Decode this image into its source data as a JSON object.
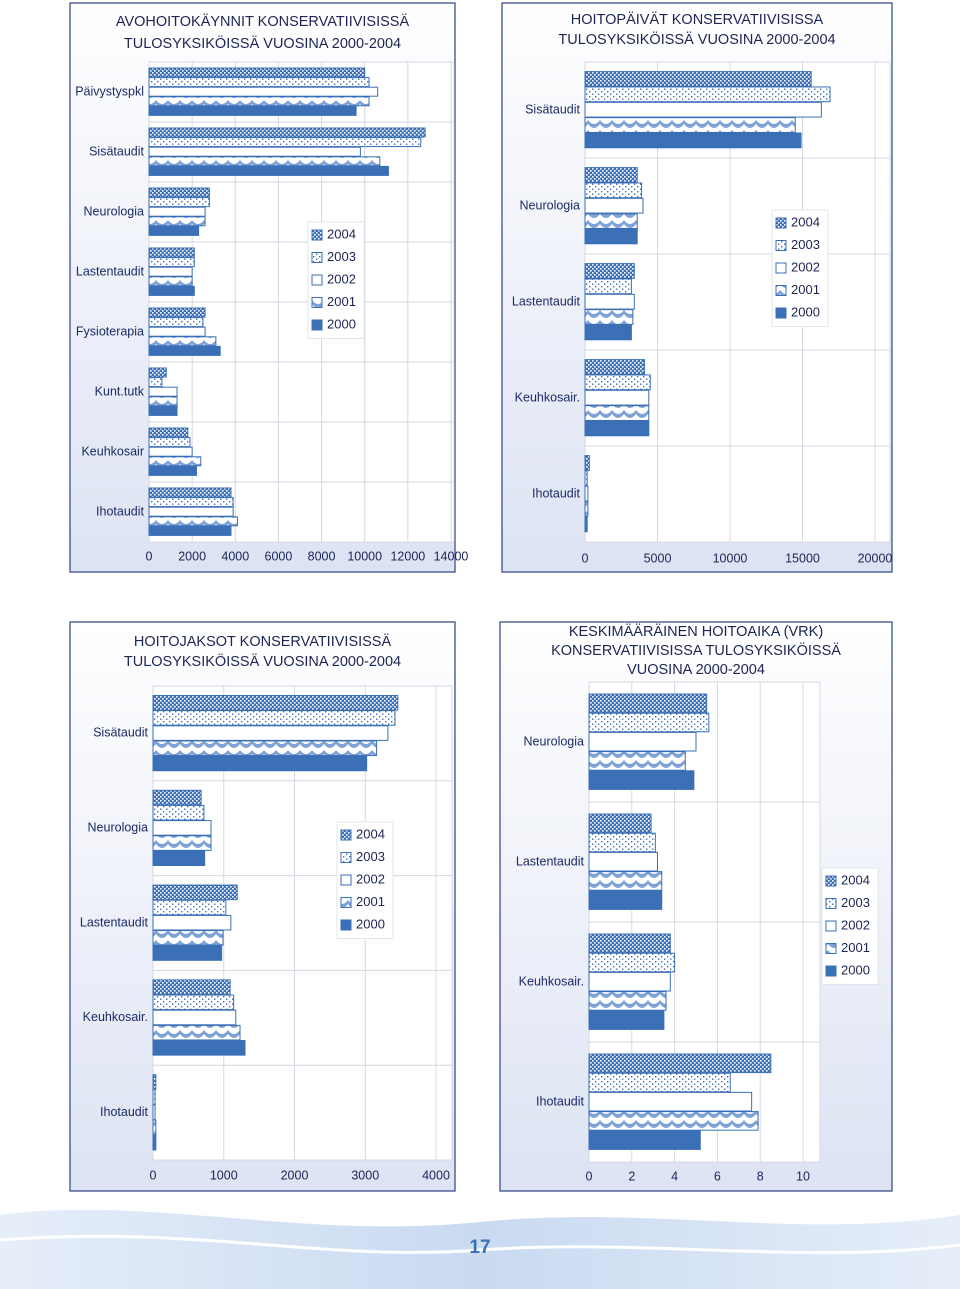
{
  "chart_data": [
    {
      "type": "hbar",
      "title": [
        "AVOHOITOKÄYNNIT KONSERVATIIVISISSÄ",
        "TULOSYKSIKÖISSÄ VUOSINA 2000-2004"
      ],
      "categories": [
        "Päivystyspkl",
        "Sisätaudit",
        "Neurologia",
        "Lastentaudit",
        "Fysioterapia",
        "Kunt.tutk",
        "Keuhkosair",
        "Ihotaudit"
      ],
      "series": [
        {
          "name": "2004",
          "color": "#3b6fb6",
          "pattern": "checker",
          "values": [
            10000,
            12800,
            2800,
            2100,
            2600,
            800,
            1800,
            3800
          ]
        },
        {
          "name": "2003",
          "color": "#3b6fb6",
          "pattern": "dots",
          "values": [
            10200,
            12600,
            2800,
            2100,
            2500,
            600,
            1900,
            3900
          ]
        },
        {
          "name": "2002",
          "color": "#3b6fb6",
          "pattern": "plain",
          "values": [
            10600,
            9800,
            2600,
            2000,
            2600,
            1300,
            2000,
            3900
          ]
        },
        {
          "name": "2001",
          "color": "#3b6fb6",
          "pattern": "scales",
          "values": [
            10200,
            10700,
            2600,
            2000,
            3100,
            1300,
            2400,
            4100
          ]
        },
        {
          "name": "2000",
          "color": "#3b6fb6",
          "pattern": "solid",
          "values": [
            9600,
            11100,
            2300,
            2100,
            3300,
            1300,
            2200,
            3800
          ]
        }
      ],
      "xlim": [
        0,
        14000
      ],
      "xticks": [
        0,
        2000,
        4000,
        6000,
        8000,
        10000,
        12000,
        14000
      ],
      "grid": true
    },
    {
      "type": "hbar",
      "title": [
        "HOITOPÄIVÄT KONSERVATIIVISISSA",
        "TULOSYKSIKÖISSÄ VUOSINA 2000-2004"
      ],
      "categories": [
        "Sisätaudit",
        "Neurologia",
        "Lastentaudit",
        "Keuhkosair.",
        "Ihotaudit"
      ],
      "series": [
        {
          "name": "2004",
          "color": "#3b6fb6",
          "pattern": "checker",
          "values": [
            15600,
            3600,
            3400,
            4100,
            300
          ]
        },
        {
          "name": "2003",
          "color": "#3b6fb6",
          "pattern": "dots",
          "values": [
            16900,
            3900,
            3200,
            4500,
            150
          ]
        },
        {
          "name": "2002",
          "color": "#3b6fb6",
          "pattern": "plain",
          "values": [
            16300,
            4000,
            3400,
            4400,
            200
          ]
        },
        {
          "name": "2001",
          "color": "#3b6fb6",
          "pattern": "scales",
          "values": [
            14500,
            3600,
            3300,
            4400,
            200
          ]
        },
        {
          "name": "2000",
          "color": "#3b6fb6",
          "pattern": "solid",
          "values": [
            14900,
            3600,
            3200,
            4400,
            150
          ]
        }
      ],
      "xlim": [
        0,
        20000
      ],
      "xticks": [
        0,
        5000,
        10000,
        15000,
        20000
      ],
      "grid": true
    },
    {
      "type": "hbar",
      "title": [
        "HOITOJAKSOT KONSERVATIIVISISSÄ",
        "TULOSYKSIKÖISSÄ VUOSINA 2000-2004"
      ],
      "categories": [
        "Sisätaudit",
        "Neurologia",
        "Lastentaudit",
        "Keuhkosair.",
        "Ihotaudit"
      ],
      "series": [
        {
          "name": "2004",
          "color": "#3b6fb6",
          "pattern": "checker",
          "values": [
            3460,
            680,
            1190,
            1090,
            40
          ]
        },
        {
          "name": "2003",
          "color": "#3b6fb6",
          "pattern": "dots",
          "values": [
            3420,
            720,
            1030,
            1140,
            30
          ]
        },
        {
          "name": "2002",
          "color": "#3b6fb6",
          "pattern": "plain",
          "values": [
            3320,
            820,
            1100,
            1170,
            30
          ]
        },
        {
          "name": "2001",
          "color": "#3b6fb6",
          "pattern": "scales",
          "values": [
            3160,
            820,
            990,
            1230,
            40
          ]
        },
        {
          "name": "2000",
          "color": "#3b6fb6",
          "pattern": "solid",
          "values": [
            3020,
            730,
            970,
            1300,
            40
          ]
        }
      ],
      "xlim": [
        0,
        4000
      ],
      "xticks": [
        0,
        1000,
        2000,
        3000,
        4000
      ],
      "grid": true
    },
    {
      "type": "hbar",
      "title": [
        "KESKIMÄÄRÄINEN HOITOAIKA (VRK)",
        "KONSERVATIIVISISSA TULOSYKSIKÖISSÄ",
        "VUOSINA 2000-2004"
      ],
      "categories": [
        "Neurologia",
        "Lastentaudit",
        "Keuhkosair.",
        "Ihotaudit"
      ],
      "series": [
        {
          "name": "2004",
          "color": "#3b6fb6",
          "pattern": "checker",
          "values": [
            5.5,
            2.9,
            3.8,
            8.5
          ]
        },
        {
          "name": "2003",
          "color": "#3b6fb6",
          "pattern": "dots",
          "values": [
            5.6,
            3.1,
            4.0,
            6.6
          ]
        },
        {
          "name": "2002",
          "color": "#3b6fb6",
          "pattern": "plain",
          "values": [
            5.0,
            3.2,
            3.8,
            7.6
          ]
        },
        {
          "name": "2001",
          "color": "#3b6fb6",
          "pattern": "scales",
          "values": [
            4.5,
            3.4,
            3.6,
            7.9
          ]
        },
        {
          "name": "2000",
          "color": "#3b6fb6",
          "pattern": "solid",
          "values": [
            4.9,
            3.4,
            3.5,
            5.2
          ]
        }
      ],
      "xlim": [
        0,
        10
      ],
      "xticks": [
        0,
        2,
        4,
        6,
        8,
        10
      ],
      "grid": true
    }
  ],
  "page_number": "17"
}
